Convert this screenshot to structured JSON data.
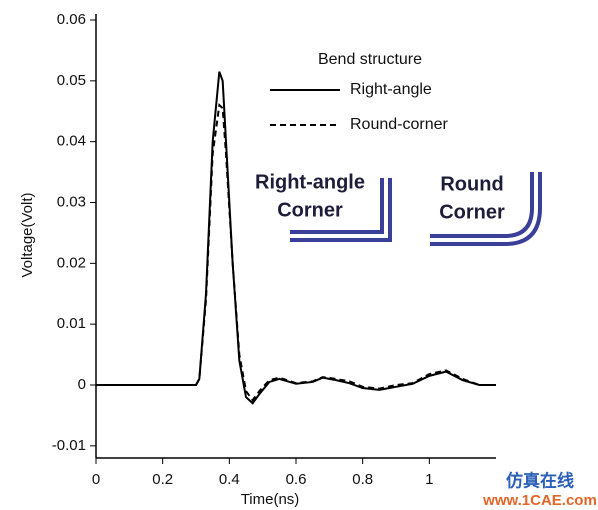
{
  "chart_data": {
    "type": "line",
    "x_label": "Time(ns)",
    "y_label": "Voltage(Volt)",
    "legend_title": "Bend structure",
    "annotations": [
      "Right-angle",
      "Corner",
      "Round",
      "Corner",
      "仿真在线",
      "www.1CAE.com"
    ],
    "x": [
      0,
      0.1,
      0.2,
      0.3,
      0.31,
      0.33,
      0.35,
      0.37,
      0.38,
      0.39,
      0.41,
      0.43,
      0.45,
      0.47,
      0.49,
      0.52,
      0.55,
      0.6,
      0.65,
      0.68,
      0.72,
      0.76,
      0.8,
      0.85,
      0.9,
      0.95,
      1.0,
      1.05,
      1.1,
      1.15,
      1.2
    ],
    "series": [
      {
        "name": "Right-angle",
        "color": "#000000",
        "dash": "solid",
        "values": [
          0,
          0,
          0,
          0,
          0.001,
          0.015,
          0.04,
          0.0515,
          0.05,
          0.04,
          0.02,
          0.004,
          -0.002,
          -0.003,
          -0.0015,
          0.0005,
          0.001,
          0.0002,
          0.0005,
          0.0012,
          0.0008,
          0.0003,
          -0.0005,
          -0.0008,
          -0.0003,
          0.0002,
          0.0015,
          0.0022,
          0.0008,
          0,
          0
        ]
      },
      {
        "name": "Round-corner",
        "color": "#000000",
        "dash": "dashed",
        "values": [
          0,
          0,
          0,
          0,
          0.001,
          0.014,
          0.038,
          0.046,
          0.0455,
          0.038,
          0.02,
          0.005,
          -0.001,
          -0.0025,
          -0.001,
          0.0008,
          0.0012,
          0.0003,
          0.0006,
          0.0013,
          0.001,
          0.0006,
          -0.0003,
          -0.0006,
          0,
          0.0003,
          0.0018,
          0.0024,
          0.001,
          0,
          0
        ]
      }
    ],
    "xlim": [
      0,
      1.2
    ],
    "xticks": [
      0,
      0.2,
      0.4,
      0.6,
      0.8,
      1
    ],
    "ylim": [
      -0.012,
      0.06
    ],
    "yticks": [
      -0.01,
      0,
      0.01,
      0.02,
      0.03,
      0.04,
      0.05,
      0.06
    ]
  }
}
